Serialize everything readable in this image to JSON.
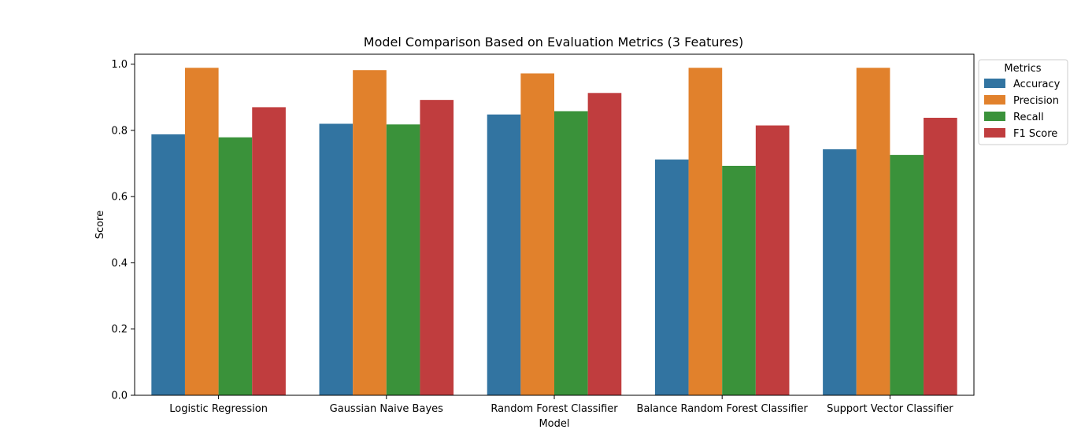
{
  "chart_data": {
    "type": "bar",
    "title": "Model Comparison Based on Evaluation Metrics (3 Features)",
    "xlabel": "Model",
    "ylabel": "Score",
    "ylim": [
      0,
      1.03
    ],
    "yticks": [
      "0.0",
      "0.2",
      "0.4",
      "0.6",
      "0.8",
      "1.0"
    ],
    "categories": [
      "Logistic Regression",
      "Gaussian Naive Bayes",
      "Random Forest Classifier",
      "Balance Random Forest Classifier",
      "Support Vector Classifier"
    ],
    "series": [
      {
        "name": "Accuracy",
        "color": "#3274a1",
        "values": [
          0.788,
          0.82,
          0.848,
          0.712,
          0.743
        ]
      },
      {
        "name": "Precision",
        "color": "#e1812c",
        "values": [
          0.989,
          0.982,
          0.972,
          0.989,
          0.989
        ]
      },
      {
        "name": "Recall",
        "color": "#3a923a",
        "values": [
          0.779,
          0.818,
          0.858,
          0.693,
          0.726
        ]
      },
      {
        "name": "F1 Score",
        "color": "#c03d3e",
        "values": [
          0.87,
          0.892,
          0.913,
          0.815,
          0.838
        ]
      }
    ],
    "legend": {
      "title": "Metrics",
      "placement": "outside right-top"
    },
    "grid": false
  }
}
